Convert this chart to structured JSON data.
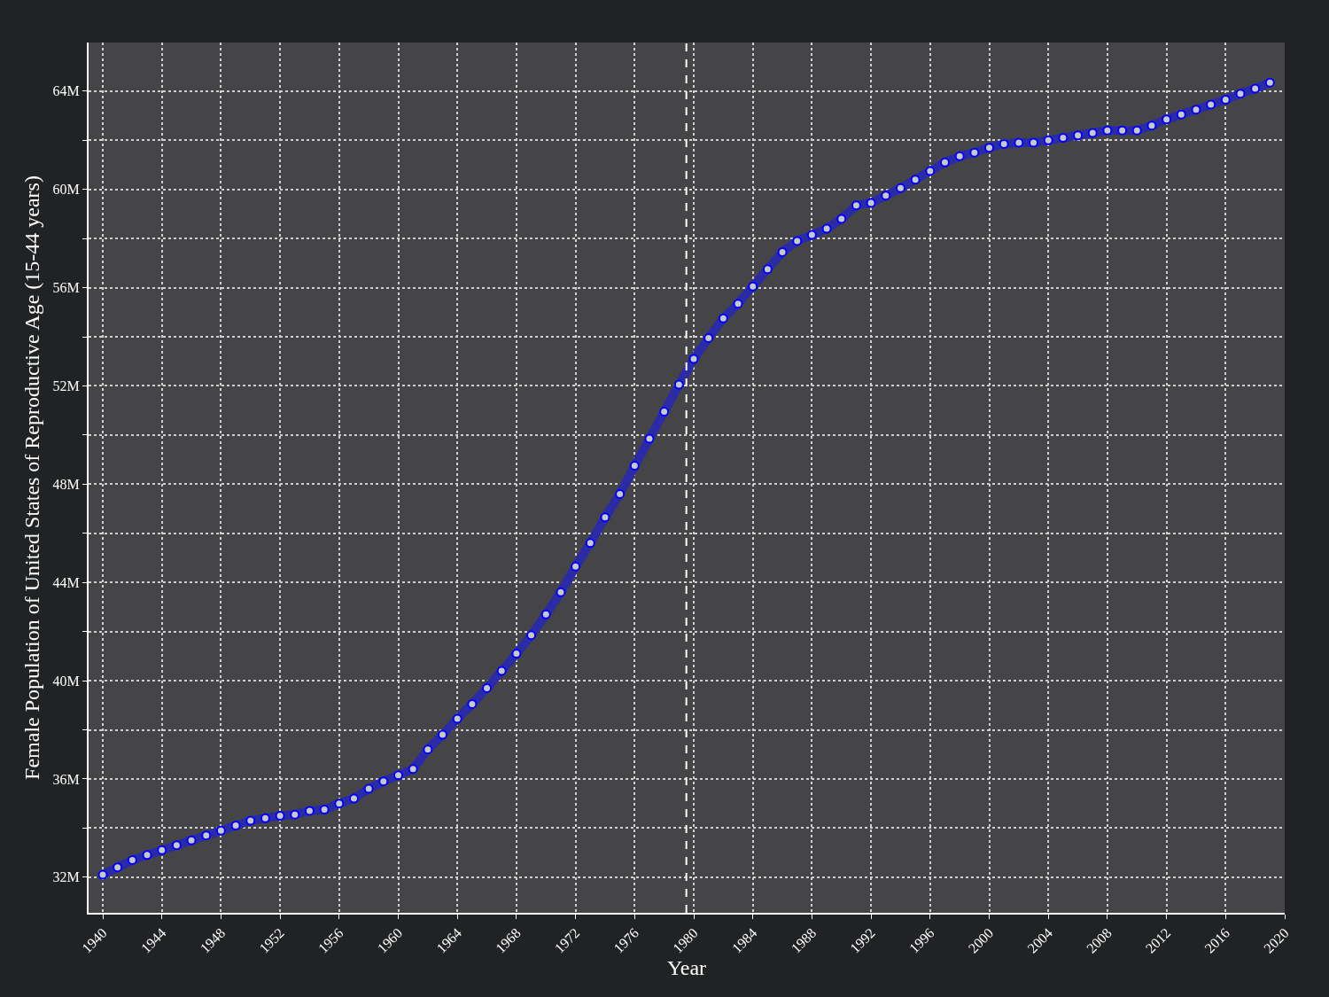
{
  "chart_data": {
    "type": "line",
    "xlabel": "Year",
    "ylabel": "Female Population of United States of Reproductive Age (15-44 years)",
    "x": [
      1940,
      1941,
      1942,
      1943,
      1944,
      1945,
      1946,
      1947,
      1948,
      1949,
      1950,
      1951,
      1952,
      1953,
      1954,
      1955,
      1956,
      1957,
      1958,
      1959,
      1960,
      1961,
      1962,
      1963,
      1964,
      1965,
      1966,
      1967,
      1968,
      1969,
      1970,
      1971,
      1972,
      1973,
      1974,
      1975,
      1976,
      1977,
      1978,
      1979,
      1980,
      1981,
      1982,
      1983,
      1984,
      1985,
      1986,
      1987,
      1988,
      1989,
      1990,
      1991,
      1992,
      1993,
      1994,
      1995,
      1996,
      1997,
      1998,
      1999,
      2000,
      2001,
      2002,
      2003,
      2004,
      2005,
      2006,
      2007,
      2008,
      2009,
      2010,
      2011,
      2012,
      2013,
      2014,
      2015,
      2016,
      2017,
      2018,
      2019
    ],
    "series": [
      {
        "color": "#2b2ba8",
        "values": [
          32.1,
          32.4,
          32.7,
          32.9,
          33.1,
          33.3,
          33.5,
          33.7,
          33.9,
          34.1,
          34.3,
          34.4,
          34.5,
          34.55,
          34.7,
          34.75,
          35.0,
          35.2,
          35.6,
          35.9,
          36.15,
          36.4,
          37.2,
          37.8,
          38.45,
          39.05,
          39.7,
          40.4,
          41.1,
          41.85,
          42.7,
          43.6,
          44.65,
          45.6,
          46.65,
          47.6,
          48.75,
          49.85,
          50.95,
          52.05,
          53.1,
          53.95,
          54.75,
          55.35,
          56.05,
          56.75,
          57.45,
          57.9,
          58.15,
          58.4,
          58.8,
          59.35,
          59.45,
          59.75,
          60.05,
          60.4,
          60.75,
          61.1,
          61.35,
          61.5,
          61.7,
          61.85,
          61.9,
          61.9,
          62.0,
          62.1,
          62.2,
          62.3,
          62.4,
          62.4,
          62.4,
          62.6,
          62.85,
          63.05,
          63.25,
          63.45,
          63.65,
          63.9,
          64.1,
          64.35
        ]
      }
    ],
    "xlim": [
      1939.04,
      2020
    ],
    "xticks": [
      1940,
      1944,
      1948,
      1952,
      1956,
      1960,
      1964,
      1968,
      1972,
      1976,
      1980,
      1984,
      1988,
      1992,
      1996,
      2000,
      2004,
      2008,
      2012,
      2016,
      2020
    ],
    "ylim": [
      30.55,
      65.98
    ],
    "yticks": [
      {
        "value": 32,
        "label": "32M"
      },
      {
        "value": 34,
        "label": null
      },
      {
        "value": 36,
        "label": "36M"
      },
      {
        "value": 38,
        "label": null
      },
      {
        "value": 40,
        "label": "40M"
      },
      {
        "value": 42,
        "label": null
      },
      {
        "value": 44,
        "label": "44M"
      },
      {
        "value": 46,
        "label": null
      },
      {
        "value": 48,
        "label": "48M"
      },
      {
        "value": 50,
        "label": null
      },
      {
        "value": 52,
        "label": "52M"
      },
      {
        "value": 54,
        "label": null
      },
      {
        "value": 56,
        "label": "56M"
      },
      {
        "value": 58,
        "label": null
      },
      {
        "value": 60,
        "label": "60M"
      },
      {
        "value": 62,
        "label": null
      },
      {
        "value": 64,
        "label": "64M"
      }
    ],
    "ref_lines": [
      {
        "axis": "x",
        "value": 1979.5,
        "color": "#ffffff",
        "line_style": "dashed"
      }
    ],
    "grid": true,
    "marker": "circle",
    "line_style": "solid"
  }
}
